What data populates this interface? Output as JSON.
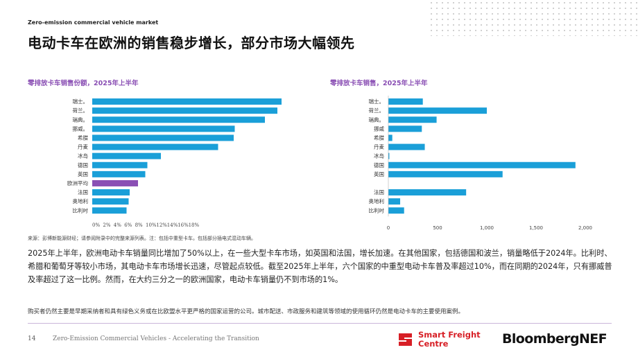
{
  "header": {
    "kicker": "Zero-emission commercial vehicle market",
    "title": "电动卡车在欧洲的销售稳步增长，部分市场大幅领先"
  },
  "chart_data": [
    {
      "type": "bar",
      "orientation": "horizontal",
      "title": "零排放卡车销售份额，2025年上半年",
      "categories": [
        "瑞士。",
        "荷兰。",
        "瑞典。",
        "挪威。",
        "希腊",
        "丹麦",
        "冰岛",
        "德国",
        "英国",
        "欧洲平均",
        "法国",
        "奥地利",
        "比利时"
      ],
      "values": [
        18.2,
        17.8,
        16.6,
        13.7,
        13.6,
        12.1,
        6.6,
        5.3,
        5.1,
        4.4,
        3.6,
        3.5,
        3.3
      ],
      "highlight_index": 9,
      "ticks": [
        "0%",
        "2%",
        "4%",
        "6%",
        "8%",
        "10%",
        "12%",
        "14%",
        "16%",
        "18%"
      ],
      "xlim": [
        0,
        18
      ],
      "colors": {
        "bar": "#1a9fd8",
        "highlight": "#8a4fb4"
      }
    },
    {
      "type": "bar",
      "orientation": "horizontal",
      "title": "零排放卡车销售，2025年上半年",
      "categories": [
        "瑞士。",
        "荷兰。",
        "瑞典。",
        "挪威",
        "希腊",
        "丹麦",
        "冰岛",
        "德国",
        "英国",
        "法国",
        "奥地利",
        "比利时"
      ],
      "values": [
        350,
        1000,
        490,
        340,
        40,
        370,
        10,
        1900,
        1160,
        790,
        120,
        160
      ],
      "row_positions": [
        0,
        1,
        2,
        3,
        4,
        5,
        6,
        7,
        8,
        10,
        11,
        12
      ],
      "ticks": [
        "0",
        "500",
        "1,000",
        "1,500",
        "2,000"
      ],
      "tick_values": [
        0,
        500,
        1000,
        1500,
        2000
      ],
      "xlim": [
        0,
        2000
      ],
      "colors": {
        "bar": "#1a9fd8"
      }
    }
  ],
  "source": "来源：彭博新能源财经；请参阅附录中的完整来源列表。注：包括中重型卡车。包括部分插电式混动车辆。",
  "body": "2025年上半年，欧洲电动卡车销量同比增加了50%以上，在一些大型卡车市场，如英国和法国，增长加速。在其他国家，包括德国和波兰，销量略低于2024年。比利时、希腊和葡萄牙等较小市场，其电动卡车市场增长迅速，尽管起点较低。截至2025年上半年，六个国家的中重型电动卡车普及率超过10%，而在同期的2024年，只有挪威普及率超过了这一比例。然而，在大约三分之一的欧洲国家，电动卡车销量仍不到市场的1%。",
  "note": "购买者仍然主要是早期采纳者和具有绿色义务或在比欧盟水平更严格的国家运营的公司。城市配送、市政服务和建筑等领域的使用循环仍然是电动卡车的主要使用案例。",
  "footer": {
    "page_number": "14",
    "title": "Zero-Emission Commercial Vehicles - Accelerating the Transition",
    "sfc_line1": "Smart Freight",
    "sfc_line2": "Centre",
    "bnef": "BloombergNEF"
  },
  "colors": {
    "accent": "#8a4fb4",
    "bar": "#1a9fd8",
    "sfc_red": "#d71f26"
  }
}
